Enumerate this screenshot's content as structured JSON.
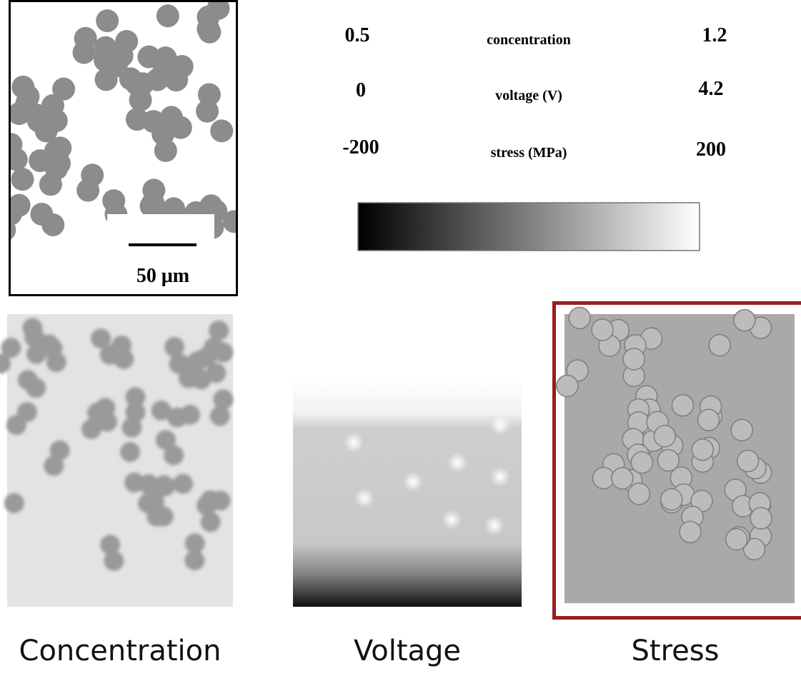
{
  "scale_bar": {
    "label": "50 μm"
  },
  "legend": {
    "rows": [
      {
        "min": "0.5",
        "name": "concentration",
        "max": "1.2"
      },
      {
        "min": "0",
        "name": "voltage (V)",
        "max": "4.2"
      },
      {
        "min": "-200",
        "name": "stress (MPa)",
        "max": "200"
      }
    ]
  },
  "panels": [
    {
      "caption": "Concentration"
    },
    {
      "caption": "Voltage"
    },
    {
      "caption": "Stress"
    }
  ]
}
